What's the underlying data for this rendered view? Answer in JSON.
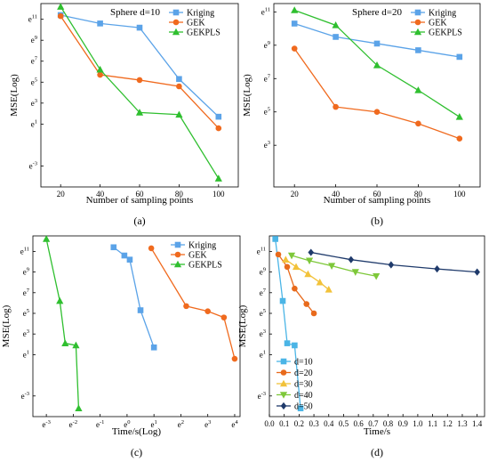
{
  "colors": {
    "Kriging": "#5ba3e8",
    "GEK": "#f06a1e",
    "GEKPLS": "#2fbf2f"
  },
  "chart_data": [
    {
      "id": "a",
      "type": "line",
      "caption": "(a)",
      "annotation": "Sphere d=10",
      "xlabel": "Number of sampling points",
      "ylabel": "MSE(Log)",
      "x_scale": "linear",
      "y_scale": "log",
      "xlim": [
        10,
        110
      ],
      "ylim_exp": [
        -5,
        12.5
      ],
      "xticks": [
        "20",
        "40",
        "60",
        "80",
        "100"
      ],
      "xtick_values": [
        20,
        40,
        60,
        80,
        100
      ],
      "yticks": [
        "e-3",
        "e1",
        "e3",
        "e5",
        "e7",
        "e9",
        "e11"
      ],
      "ytick_values": [
        -3,
        1,
        3,
        5,
        7,
        9,
        11
      ],
      "legend": "top-right",
      "series": [
        {
          "name": "Kriging",
          "marker": "square",
          "x": [
            20,
            40,
            60,
            80,
            100
          ],
          "y_exp": [
            11.4,
            10.6,
            10.2,
            5.3,
            1.7
          ]
        },
        {
          "name": "GEK",
          "marker": "circle",
          "x": [
            20,
            40,
            60,
            80,
            100
          ],
          "y_exp": [
            11.3,
            5.7,
            5.2,
            4.6,
            0.6
          ]
        },
        {
          "name": "GEKPLS",
          "marker": "triangle",
          "x": [
            20,
            40,
            60,
            80,
            100
          ],
          "y_exp": [
            12.2,
            6.2,
            2.1,
            1.9,
            -4.2
          ]
        }
      ]
    },
    {
      "id": "b",
      "type": "line",
      "caption": "(b)",
      "annotation": "Sphere d=20",
      "xlabel": "Number of sampling points",
      "ylabel": "MSE(Log)",
      "x_scale": "linear",
      "y_scale": "log",
      "xlim": [
        10,
        110
      ],
      "ylim_exp": [
        0.5,
        11.5
      ],
      "xticks": [
        "20",
        "40",
        "60",
        "80",
        "100"
      ],
      "xtick_values": [
        20,
        40,
        60,
        80,
        100
      ],
      "yticks": [
        "e3",
        "e5",
        "e7",
        "e9",
        "e11"
      ],
      "ytick_values": [
        3,
        5,
        7,
        9,
        11
      ],
      "legend": "top-right",
      "series": [
        {
          "name": "Kriging",
          "marker": "square",
          "x": [
            20,
            40,
            60,
            80,
            100
          ],
          "y_exp": [
            10.3,
            9.5,
            9.1,
            8.7,
            8.3
          ]
        },
        {
          "name": "GEK",
          "marker": "circle",
          "x": [
            20,
            40,
            60,
            80,
            100
          ],
          "y_exp": [
            8.8,
            5.3,
            5.0,
            4.3,
            3.4
          ]
        },
        {
          "name": "GEKPLS",
          "marker": "triangle",
          "x": [
            20,
            40,
            60,
            80,
            100
          ],
          "y_exp": [
            11.1,
            10.2,
            7.8,
            6.3,
            4.7
          ]
        }
      ]
    },
    {
      "id": "c",
      "type": "line",
      "caption": "(c)",
      "xlabel": "Time/s(Log)",
      "ylabel": "MSE(Log)",
      "x_scale": "log",
      "y_scale": "log",
      "xlim_exp": [
        -3.5,
        4.2
      ],
      "ylim_exp": [
        -5,
        12.5
      ],
      "xticks": [
        "e-3",
        "e-2",
        "e-1",
        "e0",
        "e1",
        "e2",
        "e3",
        "e4"
      ],
      "xtick_values": [
        -3,
        -2,
        -1,
        0,
        1,
        2,
        3,
        4
      ],
      "yticks": [
        "e-3",
        "e1",
        "e3",
        "e5",
        "e7",
        "e9",
        "e11"
      ],
      "ytick_values": [
        -3,
        1,
        3,
        5,
        7,
        9,
        11
      ],
      "legend": "top-right",
      "series": [
        {
          "name": "Kriging",
          "marker": "square",
          "x_exp": [
            -0.5,
            -0.1,
            0.1,
            0.5,
            1.0
          ],
          "y_exp": [
            11.4,
            10.6,
            10.2,
            5.3,
            1.7
          ]
        },
        {
          "name": "GEK",
          "marker": "circle",
          "x_exp": [
            0.9,
            2.2,
            3.0,
            3.6,
            4.0
          ],
          "y_exp": [
            11.3,
            5.7,
            5.2,
            4.6,
            0.6
          ]
        },
        {
          "name": "GEKPLS",
          "marker": "triangle",
          "x_exp": [
            -3.0,
            -2.5,
            -2.3,
            -1.9,
            -1.8
          ],
          "y_exp": [
            12.2,
            6.2,
            2.1,
            1.9,
            -4.2
          ]
        }
      ]
    },
    {
      "id": "d",
      "type": "line",
      "caption": "(d)",
      "xlabel": "Time/s",
      "ylabel": "MSE(Log)",
      "x_scale": "linear",
      "y_scale": "log",
      "xlim": [
        0,
        1.45
      ],
      "ylim_exp": [
        -5,
        12.5
      ],
      "xticks": [
        "0.0",
        "0.1",
        "0.2",
        "0.3",
        "0.4",
        "0.5",
        "0.6",
        "0.7",
        "0.8",
        "0.9",
        "1.0",
        "1.1",
        "1.2",
        "1.3",
        "1.4"
      ],
      "xtick_values": [
        0,
        0.1,
        0.2,
        0.3,
        0.4,
        0.5,
        0.6,
        0.7,
        0.8,
        0.9,
        1.0,
        1.1,
        1.2,
        1.3,
        1.4
      ],
      "yticks": [
        "e-3",
        "e1",
        "e3",
        "e5",
        "e7",
        "e9",
        "e11"
      ],
      "ytick_values": [
        -3,
        1,
        3,
        5,
        7,
        9,
        11
      ],
      "legend": "bottom-left",
      "series": [
        {
          "name": "d=10",
          "marker": "square",
          "color": "#4bb5e6",
          "x": [
            0.04,
            0.09,
            0.12,
            0.17,
            0.21
          ],
          "y_exp": [
            12.2,
            6.2,
            2.1,
            1.9,
            -4.2
          ]
        },
        {
          "name": "d=20",
          "marker": "circle",
          "color": "#e86a1c",
          "x": [
            0.06,
            0.12,
            0.17,
            0.25,
            0.3
          ],
          "y_exp": [
            10.7,
            9.5,
            7.4,
            5.9,
            5.0
          ]
        },
        {
          "name": "d=30",
          "marker": "triangle",
          "color": "#f2c23a",
          "x": [
            0.11,
            0.18,
            0.26,
            0.34,
            0.4
          ],
          "y_exp": [
            10.2,
            9.5,
            8.8,
            8.0,
            7.3
          ]
        },
        {
          "name": "d=40",
          "marker": "triangle-down",
          "color": "#7ec83a",
          "x": [
            0.15,
            0.27,
            0.42,
            0.58,
            0.72
          ],
          "y_exp": [
            10.6,
            10.1,
            9.6,
            9.0,
            8.6
          ]
        },
        {
          "name": "d=50",
          "marker": "diamond",
          "color": "#1f3a6b",
          "x": [
            0.28,
            0.55,
            0.82,
            1.13,
            1.4
          ],
          "y_exp": [
            10.9,
            10.2,
            9.7,
            9.3,
            9.0
          ]
        }
      ]
    }
  ]
}
